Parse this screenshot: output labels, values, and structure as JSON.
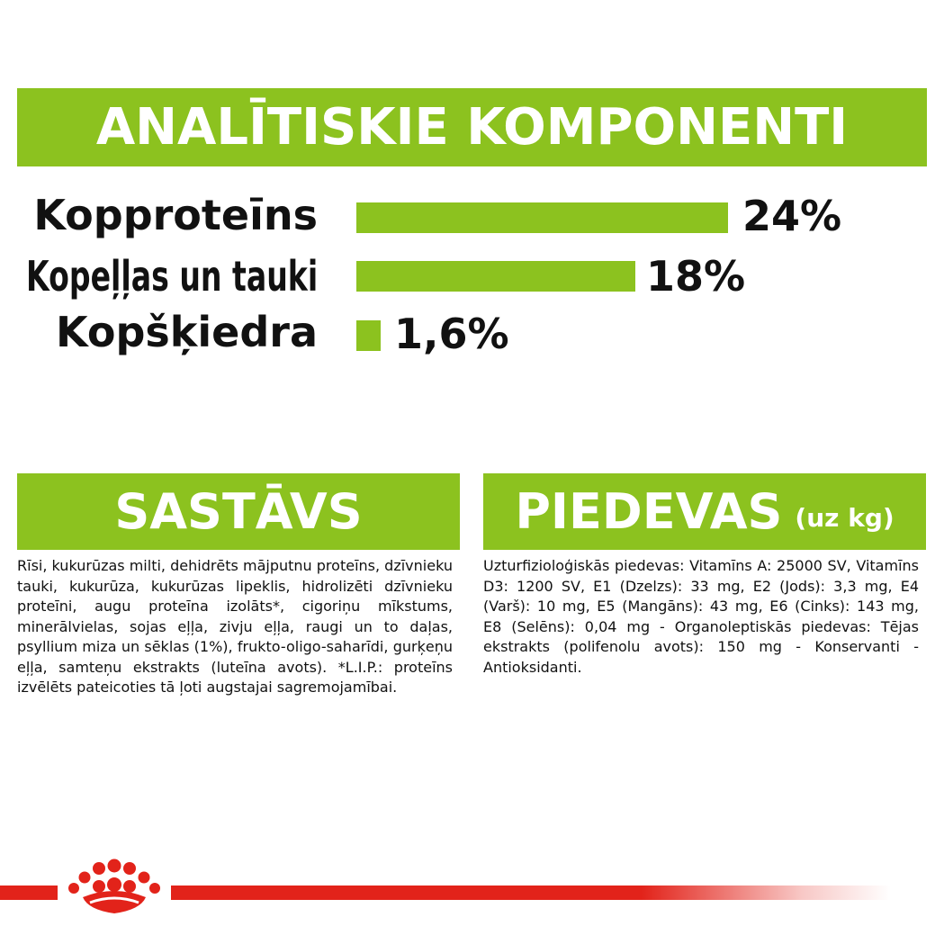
{
  "header": {
    "title": "ANALĪTISKIE KOMPONENTI"
  },
  "components": [
    {
      "label": "Kopproteīns",
      "value": "24%",
      "fraction": 0.24
    },
    {
      "label": "Kopeļļas un tauki",
      "value": "18%",
      "fraction": 0.18
    },
    {
      "label": "Kopšķiedra",
      "value": "1,6%",
      "fraction": 0.016
    }
  ],
  "sastavs": {
    "title": "SASTĀVS",
    "text": "Rīsi, kukurūzas milti, dehidrēts mājputnu proteīns, dzīvnieku tauki, kukurūza, kukurūzas lipeklis, hidrolizēti dzīvnieku proteīni, augu proteīna izolāts*, cigoriņu mīkstums, minerālvielas, sojas eļļa, zivju eļļa, raugi un to daļas, psyllium miza un sēklas (1%), frukto-oligo-saharīdi, gurķeņu eļļa, samteņu ekstrakts (luteīna avots). *L.I.P.: proteīns izvēlēts pateicoties tā ļoti augstajai sagremojamībai."
  },
  "piedevas": {
    "title": "PIEDEVAS",
    "subtitle": "(uz kg)",
    "text": "Uzturfizioloģiskās piedevas: Vitamīns A: 25000 SV, Vitamīns D3: 1200 SV, E1 (Dzelzs): 33 mg, E2 (Jods): 3,3 mg, E4 (Varš): 10 mg, E5 (Mangāns): 43 mg, E6 (Cinks): 143 mg, E8 (Selēns): 0,04 mg - Organoleptiskās piedevas: Tējas ekstrakts (polifenolu avots): 150 mg - Konservanti - Antioksidanti."
  },
  "colors": {
    "accent": "#8cc21f",
    "brand_red": "#e2231a"
  },
  "footer": {
    "logo_icon": "royal-canin-crown-icon"
  }
}
